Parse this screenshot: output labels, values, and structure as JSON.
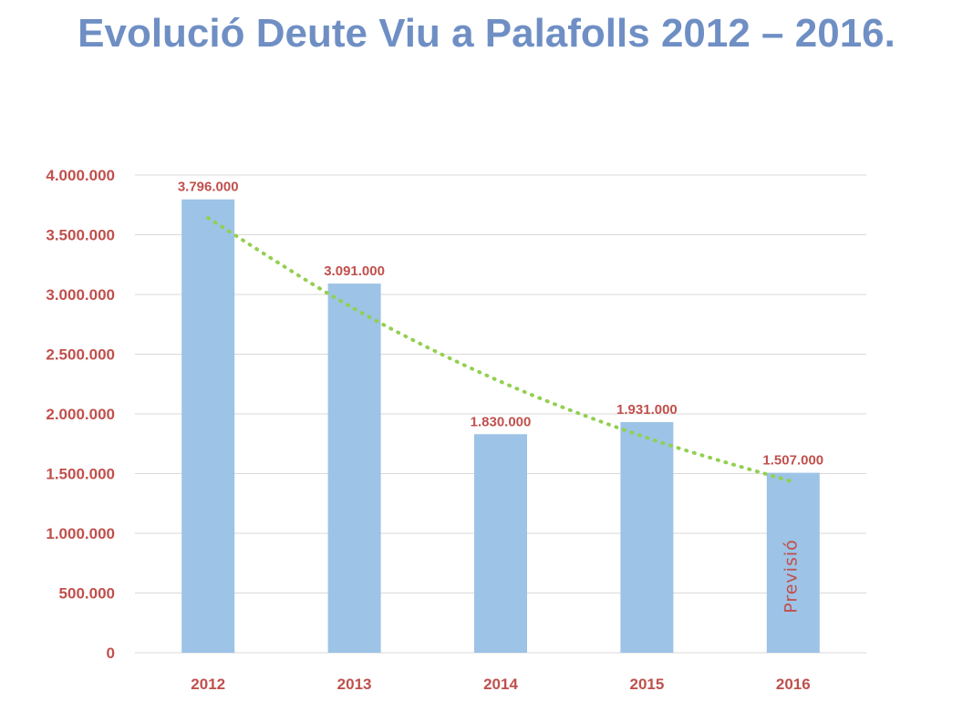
{
  "chart_data": {
    "type": "bar",
    "title": "Evolució Deute Viu a Palafolls  2012 – 2016.",
    "xlabel": "",
    "ylabel": "",
    "categories": [
      "2012",
      "2013",
      "2014",
      "2015",
      "2016"
    ],
    "values": [
      3796000,
      3091000,
      1830000,
      1931000,
      1507000
    ],
    "data_labels": [
      "3.796.000",
      "3.091.000",
      "1.830.000",
      "1.931.000",
      "1.507.000"
    ],
    "ylim": [
      0,
      4000000
    ],
    "y_ticks": [
      0,
      500000,
      1000000,
      1500000,
      2000000,
      2500000,
      3000000,
      3500000,
      4000000
    ],
    "y_tick_labels": [
      "0",
      "500.000",
      "1.000.000",
      "1.500.000",
      "2.000.000",
      "2.500.000",
      "3.000.000",
      "3.500.000",
      "4.000.000"
    ],
    "trendline": {
      "type": "polynomial",
      "style": "dotted",
      "color": "#92d050",
      "values": [
        3640000,
        2880000,
        2270000,
        1800000,
        1430000
      ]
    },
    "annotation": {
      "category": "2016",
      "text": "Previsió"
    },
    "grid": true,
    "legend": "none",
    "colors": {
      "bar": "#9dc3e6",
      "labels": "#c0504d",
      "title": "#6f8fc4",
      "grid": "#d9d9d9"
    }
  }
}
